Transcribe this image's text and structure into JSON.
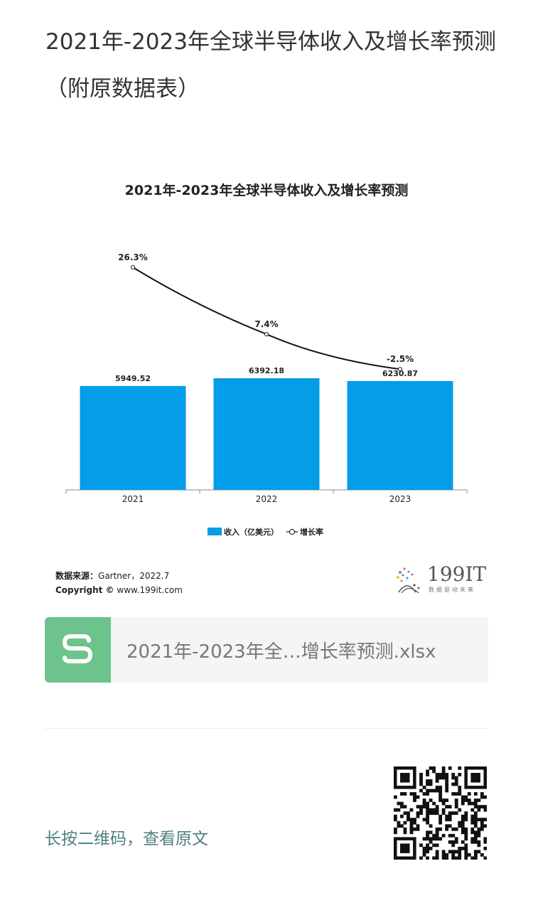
{
  "article": {
    "title": "2021年-2023年全球半导体收入及增长率预测（附原数据表）"
  },
  "chart_data": {
    "type": "bar",
    "title": "2021年-2023年全球半导体收入及增长率预测",
    "categories": [
      "2021",
      "2022",
      "2023"
    ],
    "series": [
      {
        "name": "收入（亿美元）",
        "type": "bar",
        "values": [
          5949.52,
          6392.18,
          6230.87
        ],
        "labels": [
          "5949.52",
          "6392.18",
          "6230.87"
        ]
      },
      {
        "name": "增长率",
        "type": "line",
        "values": [
          26.3,
          7.4,
          -2.5
        ],
        "labels": [
          "26.3%",
          "7.4%",
          "-2.5%"
        ]
      }
    ],
    "legend_position": "bottom",
    "grid": false,
    "colors": {
      "bar": "#039de8",
      "line": "#111111"
    }
  },
  "source": {
    "label": "数据来源：",
    "text": "Gartner，2022.7",
    "copyright_label": "Copyright ©",
    "copyright_text": "www.199it.com"
  },
  "brand": {
    "name": "199IT",
    "tagline": "数据驱动未来"
  },
  "file": {
    "name": "2021年-2023年全…增长率预测.xlsx",
    "icon": "spreadsheet-s-icon",
    "icon_color": "#6cc38b"
  },
  "footer": {
    "hint": "长按二维码，查看原文"
  }
}
